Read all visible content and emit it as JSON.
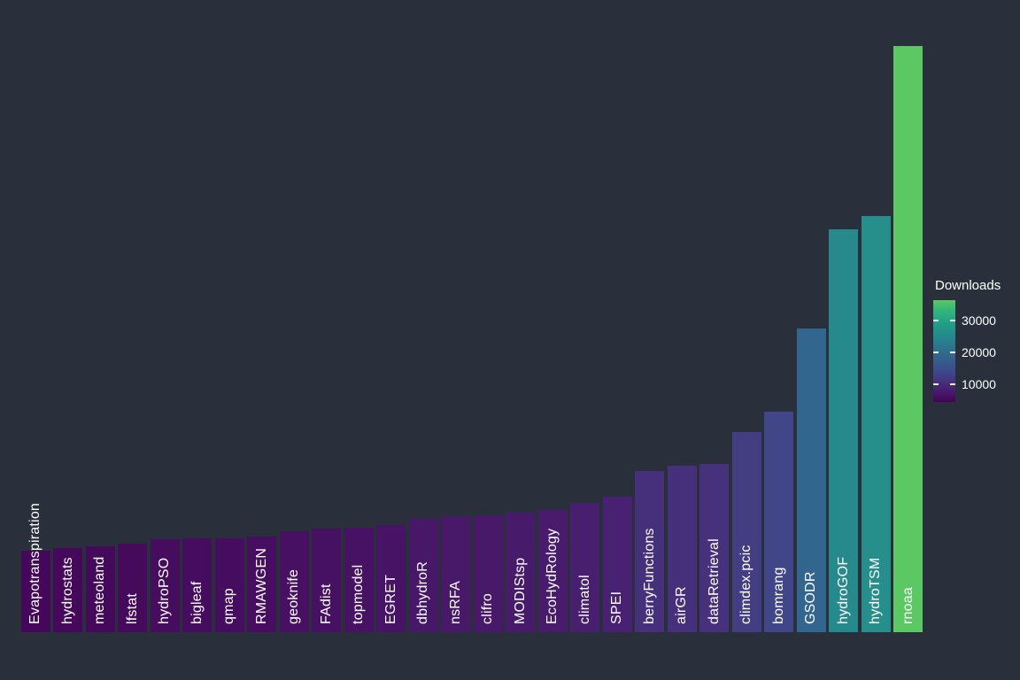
{
  "chart_data": {
    "type": "bar",
    "title": "",
    "xlabel": "",
    "ylabel": "",
    "categories": [
      "Evapotranspiration",
      "hydrostats",
      "meteoland",
      "lfstat",
      "hydroPSO",
      "bigleaf",
      "qmap",
      "RMAWGEN",
      "geoknife",
      "FAdist",
      "topmodel",
      "EGRET",
      "dbhydroR",
      "nsRFA",
      "clifro",
      "MODIStsp",
      "EcoHydRology",
      "climatol",
      "SPEI",
      "berryFunctions",
      "airGR",
      "dataRetrieval",
      "climdex.pcic",
      "bomrang",
      "GSODR",
      "hydroGOF",
      "hydroTSM",
      "rnoaa"
    ],
    "values": [
      5060,
      5230,
      5340,
      5500,
      5780,
      5830,
      5830,
      5940,
      6270,
      6440,
      6490,
      6660,
      7040,
      7200,
      7260,
      7430,
      7590,
      8030,
      8420,
      10000,
      10330,
      10450,
      12430,
      13690,
      18860,
      25010,
      25840,
      36400
    ],
    "bar_colors": [
      "#450759",
      "#45085a",
      "#45095b",
      "#460a5d",
      "#460c5e",
      "#460c5f",
      "#460c5f",
      "#460d60",
      "#471062",
      "#471163",
      "#471264",
      "#471365",
      "#471768",
      "#481869",
      "#481869",
      "#481a6b",
      "#481b6c",
      "#481e6f",
      "#482172",
      "#462f7b",
      "#46307c",
      "#46317d",
      "#433d82",
      "#404687",
      "#32668e",
      "#26898c",
      "#268f8c",
      "#5cc863"
    ],
    "ylim": [
      0,
      36400
    ],
    "grid": false,
    "legend": {
      "title": "Downloads",
      "position": "right",
      "ticks": [
        30000,
        20000,
        10000
      ],
      "scale_min": 4400,
      "scale_max": 36400,
      "gradient_bottom_to_top": [
        "#440154",
        "#461b6c",
        "#45327d",
        "#3e4989",
        "#365c8c",
        "#2e6f8e",
        "#27808e",
        "#22938b",
        "#25a485",
        "#33b57a",
        "#5cc863"
      ]
    },
    "colors": {
      "background": "#2a303b",
      "label_text": "#ffffff"
    }
  }
}
